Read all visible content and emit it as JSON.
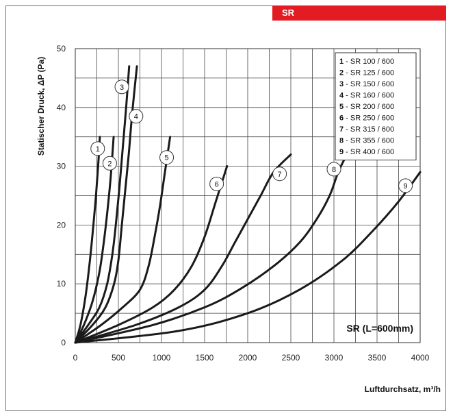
{
  "header": {
    "tab_label": "SR",
    "tab_color": "#e31b23"
  },
  "chart_data": {
    "type": "line",
    "xlabel": "Luftdurchsatz, m³/h",
    "ylabel": "Statischer Druck, ΔP (Pa)",
    "xlim": [
      0,
      4000
    ],
    "ylim": [
      0,
      50
    ],
    "xticks": [
      0,
      500,
      1000,
      1500,
      2000,
      2500,
      3000,
      3500,
      4000
    ],
    "yticks": [
      0,
      10,
      20,
      30,
      40,
      50
    ],
    "grid": true,
    "legend_position": "top-right",
    "annotation": "SR (L=600mm)",
    "series": [
      {
        "name": "SR 100 / 600",
        "number": "1",
        "points": [
          [
            0,
            0
          ],
          [
            60,
            3
          ],
          [
            120,
            8
          ],
          [
            170,
            14
          ],
          [
            210,
            20
          ],
          [
            240,
            25
          ],
          [
            265,
            30
          ],
          [
            285,
            35
          ]
        ],
        "label_at": [
          260,
          33
        ]
      },
      {
        "name": "SR 125 / 600",
        "number": "2",
        "points": [
          [
            0,
            0
          ],
          [
            100,
            3
          ],
          [
            200,
            7
          ],
          [
            280,
            12
          ],
          [
            330,
            17
          ],
          [
            370,
            22
          ],
          [
            410,
            28
          ],
          [
            445,
            35
          ]
        ],
        "label_at": [
          400,
          30.5
        ]
      },
      {
        "name": "SR 150 / 600",
        "number": "3",
        "points": [
          [
            0,
            0
          ],
          [
            150,
            3
          ],
          [
            280,
            6
          ],
          [
            370,
            10
          ],
          [
            430,
            15
          ],
          [
            470,
            20
          ],
          [
            510,
            26
          ],
          [
            550,
            33
          ],
          [
            590,
            40
          ],
          [
            625,
            47
          ]
        ],
        "label_at": [
          540,
          43.5
        ]
      },
      {
        "name": "SR 160 / 600",
        "number": "4",
        "points": [
          [
            0,
            0
          ],
          [
            200,
            3
          ],
          [
            350,
            6
          ],
          [
            450,
            10
          ],
          [
            500,
            14
          ],
          [
            540,
            20
          ],
          [
            580,
            26
          ],
          [
            620,
            32
          ],
          [
            660,
            39
          ],
          [
            715,
            47
          ]
        ],
        "label_at": [
          705,
          38.5
        ]
      },
      {
        "name": "SR 200 / 600",
        "number": "5",
        "points": [
          [
            0,
            0
          ],
          [
            300,
            3
          ],
          [
            550,
            6
          ],
          [
            750,
            9
          ],
          [
            850,
            13
          ],
          [
            920,
            18
          ],
          [
            980,
            23
          ],
          [
            1040,
            29
          ],
          [
            1100,
            35
          ]
        ],
        "label_at": [
          1060,
          31.5
        ]
      },
      {
        "name": "SR 250 / 600",
        "number": "6",
        "points": [
          [
            0,
            0
          ],
          [
            500,
            3
          ],
          [
            900,
            6
          ],
          [
            1150,
            9
          ],
          [
            1350,
            13
          ],
          [
            1500,
            18
          ],
          [
            1630,
            24
          ],
          [
            1760,
            30
          ]
        ],
        "label_at": [
          1640,
          27
        ]
      },
      {
        "name": "SR 315 / 600",
        "number": "7",
        "points": [
          [
            0,
            0
          ],
          [
            700,
            3
          ],
          [
            1200,
            6
          ],
          [
            1500,
            9
          ],
          [
            1700,
            13
          ],
          [
            1850,
            17
          ],
          [
            2000,
            21
          ],
          [
            2150,
            25
          ],
          [
            2300,
            29
          ],
          [
            2500,
            32
          ]
        ],
        "label_at": [
          2370,
          28.7
        ]
      },
      {
        "name": "SR 355 / 600",
        "number": "8",
        "points": [
          [
            0,
            0
          ],
          [
            900,
            3
          ],
          [
            1500,
            6
          ],
          [
            1900,
            9
          ],
          [
            2300,
            13
          ],
          [
            2600,
            17
          ],
          [
            2800,
            21
          ],
          [
            2950,
            25
          ],
          [
            3050,
            29
          ],
          [
            3150,
            32
          ]
        ],
        "label_at": [
          3000,
          29.5
        ]
      },
      {
        "name": "SR 400 / 600",
        "number": "9",
        "points": [
          [
            0,
            0
          ],
          [
            1200,
            2
          ],
          [
            2000,
            5
          ],
          [
            2600,
            9
          ],
          [
            3100,
            14
          ],
          [
            3450,
            19
          ],
          [
            3750,
            24
          ],
          [
            4000,
            29
          ]
        ],
        "label_at": [
          3830,
          26.7
        ]
      }
    ]
  }
}
